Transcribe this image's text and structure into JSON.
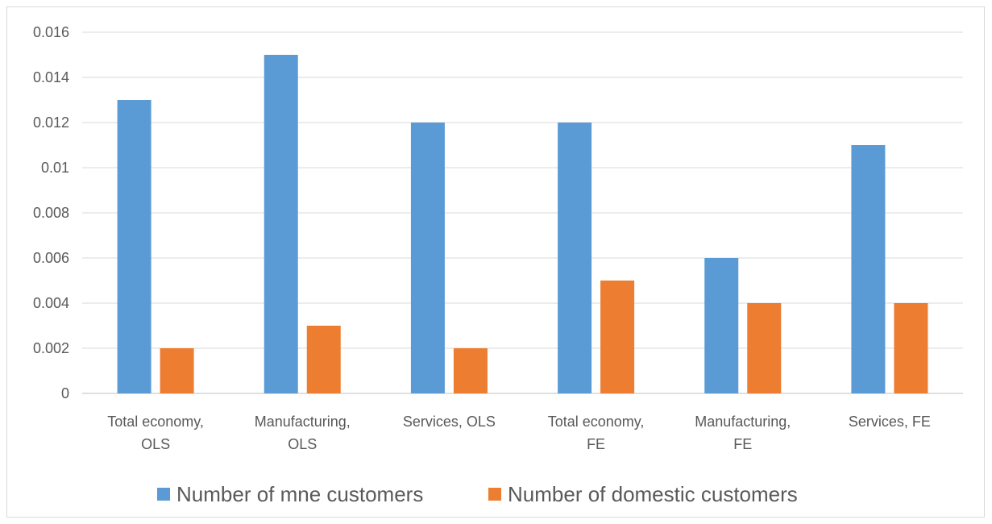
{
  "chart_data": {
    "type": "bar",
    "categories": [
      [
        "Total economy,",
        "OLS"
      ],
      [
        "Manufacturing,",
        "OLS"
      ],
      [
        "Services, OLS"
      ],
      [
        "Total economy,",
        "FE"
      ],
      [
        "Manufacturing,",
        "FE"
      ],
      [
        "Services, FE"
      ]
    ],
    "series": [
      {
        "name": "Number of mne customers",
        "color": "#5b9bd5",
        "values": [
          0.013,
          0.015,
          0.012,
          0.012,
          0.006,
          0.011
        ]
      },
      {
        "name": "Number of domestic customers",
        "color": "#ed7d31",
        "values": [
          0.002,
          0.003,
          0.002,
          0.005,
          0.004,
          0.004
        ]
      }
    ],
    "ylim": [
      0,
      0.016
    ],
    "yticks": [
      "0",
      "0.002",
      "0.004",
      "0.006",
      "0.008",
      "0.01",
      "0.012",
      "0.014",
      "0.016"
    ],
    "grid": true,
    "legend_position": "bottom"
  }
}
